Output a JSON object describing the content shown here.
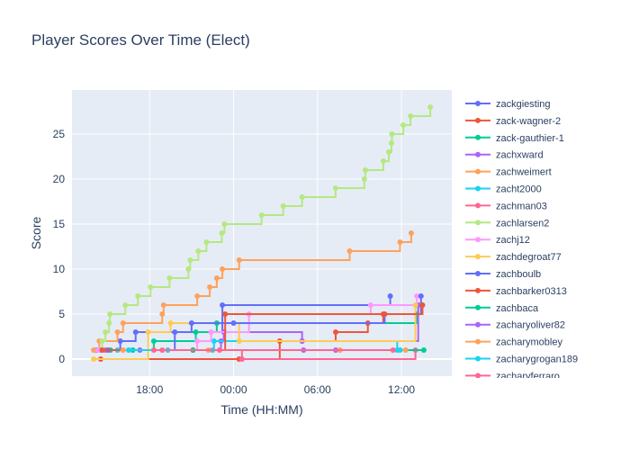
{
  "chart_data": {
    "type": "line",
    "line_shape": "step",
    "title": "Player Scores Over Time (Elect)",
    "xlabel": "Time (HH:MM)",
    "ylabel": "Score",
    "x_units": "hours since 00:00 of first day",
    "xlim": [
      12.45,
      39.6
    ],
    "ylim": [
      -1.9,
      29.9
    ],
    "xticks": [
      {
        "v": 18,
        "label": "18:00"
      },
      {
        "v": 24,
        "label": "00:00"
      },
      {
        "v": 30,
        "label": "06:00"
      },
      {
        "v": 36,
        "label": "12:00"
      }
    ],
    "yticks": [
      0,
      5,
      10,
      15,
      20,
      25
    ],
    "legend_placement": "right",
    "series": [
      {
        "name": "zackgiesting",
        "color": "#636efa",
        "points": [
          [
            14.2,
            1
          ],
          [
            15.9,
            2
          ],
          [
            17.0,
            3
          ],
          [
            23.2,
            6
          ],
          [
            35.2,
            7
          ]
        ]
      },
      {
        "name": "zack-wagner-2",
        "color": "#EF553B",
        "points": [
          [
            14.5,
            0
          ],
          [
            24.4,
            0
          ],
          [
            27.3,
            2
          ],
          [
            28.9,
            2
          ],
          [
            31.3,
            3
          ],
          [
            33.6,
            4
          ],
          [
            34.7,
            5
          ],
          [
            37.5,
            6
          ]
        ]
      },
      {
        "name": "zack-gauthier-1",
        "color": "#00cc96",
        "points": [
          [
            15.2,
            1
          ],
          [
            18.3,
            2
          ],
          [
            21.3,
            3
          ],
          [
            22.8,
            4
          ],
          [
            37.1,
            5
          ],
          [
            37.2,
            6
          ]
        ]
      },
      {
        "name": "zachxward",
        "color": "#ab63fa",
        "points": [
          [
            14.5,
            1
          ],
          [
            23.1,
            2
          ],
          [
            23.3,
            3
          ],
          [
            28.9,
            2
          ],
          [
            37.2,
            6
          ]
        ]
      },
      {
        "name": "zachweimert",
        "color": "#FFA15A",
        "points": [
          [
            14.0,
            1
          ],
          [
            14.4,
            2
          ],
          [
            15.7,
            3
          ],
          [
            16.1,
            4
          ],
          [
            18.9,
            5
          ],
          [
            19.0,
            6
          ],
          [
            21.4,
            7
          ],
          [
            22.3,
            8
          ],
          [
            22.8,
            9
          ],
          [
            23.2,
            10
          ],
          [
            24.4,
            11
          ],
          [
            32.3,
            12
          ],
          [
            35.9,
            13
          ],
          [
            36.7,
            14
          ]
        ]
      },
      {
        "name": "zacht2000",
        "color": "#19d3f3",
        "points": [
          [
            15.7,
            1
          ],
          [
            19.3,
            1
          ],
          [
            22.6,
            2
          ],
          [
            35.7,
            1
          ]
        ]
      },
      {
        "name": "zachman03",
        "color": "#FF6692",
        "points": [
          [
            14.8,
            1
          ],
          [
            18.9,
            1
          ],
          [
            24.6,
            0
          ],
          [
            37.0,
            1
          ]
        ]
      },
      {
        "name": "zachlarsen2",
        "color": "#B6E880",
        "points": [
          [
            14.4,
            1
          ],
          [
            14.6,
            2
          ],
          [
            14.84,
            3
          ],
          [
            15.1,
            4
          ],
          [
            15.16,
            5
          ],
          [
            16.26,
            6
          ],
          [
            17.16,
            7
          ],
          [
            18.06,
            8
          ],
          [
            19.42,
            9
          ],
          [
            20.77,
            10
          ],
          [
            20.9,
            11
          ],
          [
            21.48,
            12
          ],
          [
            22.06,
            13
          ],
          [
            23.16,
            14
          ],
          [
            23.35,
            15
          ],
          [
            26.0,
            16
          ],
          [
            27.55,
            17
          ],
          [
            28.9,
            18
          ],
          [
            31.29,
            19
          ],
          [
            33.35,
            20
          ],
          [
            33.42,
            21
          ],
          [
            34.71,
            22
          ],
          [
            35.1,
            23
          ],
          [
            35.29,
            24
          ],
          [
            35.32,
            25
          ],
          [
            36.13,
            26
          ],
          [
            36.65,
            27
          ],
          [
            38.06,
            28
          ]
        ]
      },
      {
        "name": "zachj12",
        "color": "#FF97FF",
        "points": [
          [
            14.3,
            1
          ],
          [
            21.4,
            2
          ],
          [
            22.4,
            3
          ],
          [
            25.1,
            5
          ],
          [
            33.8,
            6
          ],
          [
            37.1,
            7
          ]
        ]
      },
      {
        "name": "zachdegroat77",
        "color": "#FECB52",
        "points": [
          [
            14.0,
            0
          ],
          [
            17.9,
            3
          ],
          [
            19.5,
            4
          ],
          [
            24.4,
            2
          ],
          [
            37.0,
            6
          ]
        ]
      },
      {
        "name": "zachboulb",
        "color": "#636efa",
        "points": [
          [
            15.0,
            1
          ],
          [
            19.8,
            3
          ],
          [
            21.0,
            4
          ],
          [
            24.0,
            4
          ],
          [
            34.8,
            5
          ],
          [
            37.4,
            7
          ]
        ]
      },
      {
        "name": "zachbarker0313",
        "color": "#EF553B",
        "points": [
          [
            14.6,
            1
          ],
          [
            21.1,
            1
          ],
          [
            23.4,
            5
          ],
          [
            34.8,
            5
          ],
          [
            37.5,
            6
          ]
        ]
      },
      {
        "name": "zachbaca",
        "color": "#00cc96",
        "points": [
          [
            16.8,
            1
          ],
          [
            21.1,
            1
          ],
          [
            37.6,
            1
          ]
        ]
      },
      {
        "name": "zacharyoliver82",
        "color": "#ab63fa",
        "points": [
          [
            17.3,
            1
          ],
          [
            29.0,
            1
          ],
          [
            31.3,
            1
          ]
        ]
      },
      {
        "name": "zacharymobley",
        "color": "#FFA15A",
        "points": [
          [
            16.1,
            1
          ],
          [
            22.2,
            1
          ],
          [
            31.6,
            1
          ],
          [
            36.3,
            1
          ]
        ]
      },
      {
        "name": "zacharygrogan189",
        "color": "#19d3f3",
        "points": [
          [
            16.5,
            1
          ],
          [
            22.5,
            1
          ],
          [
            35.9,
            1
          ]
        ]
      },
      {
        "name": "zacharyferraro",
        "color": "#FF6692",
        "points": [
          [
            18.3,
            1
          ],
          [
            23.0,
            1
          ],
          [
            35.4,
            1
          ]
        ]
      }
    ]
  }
}
